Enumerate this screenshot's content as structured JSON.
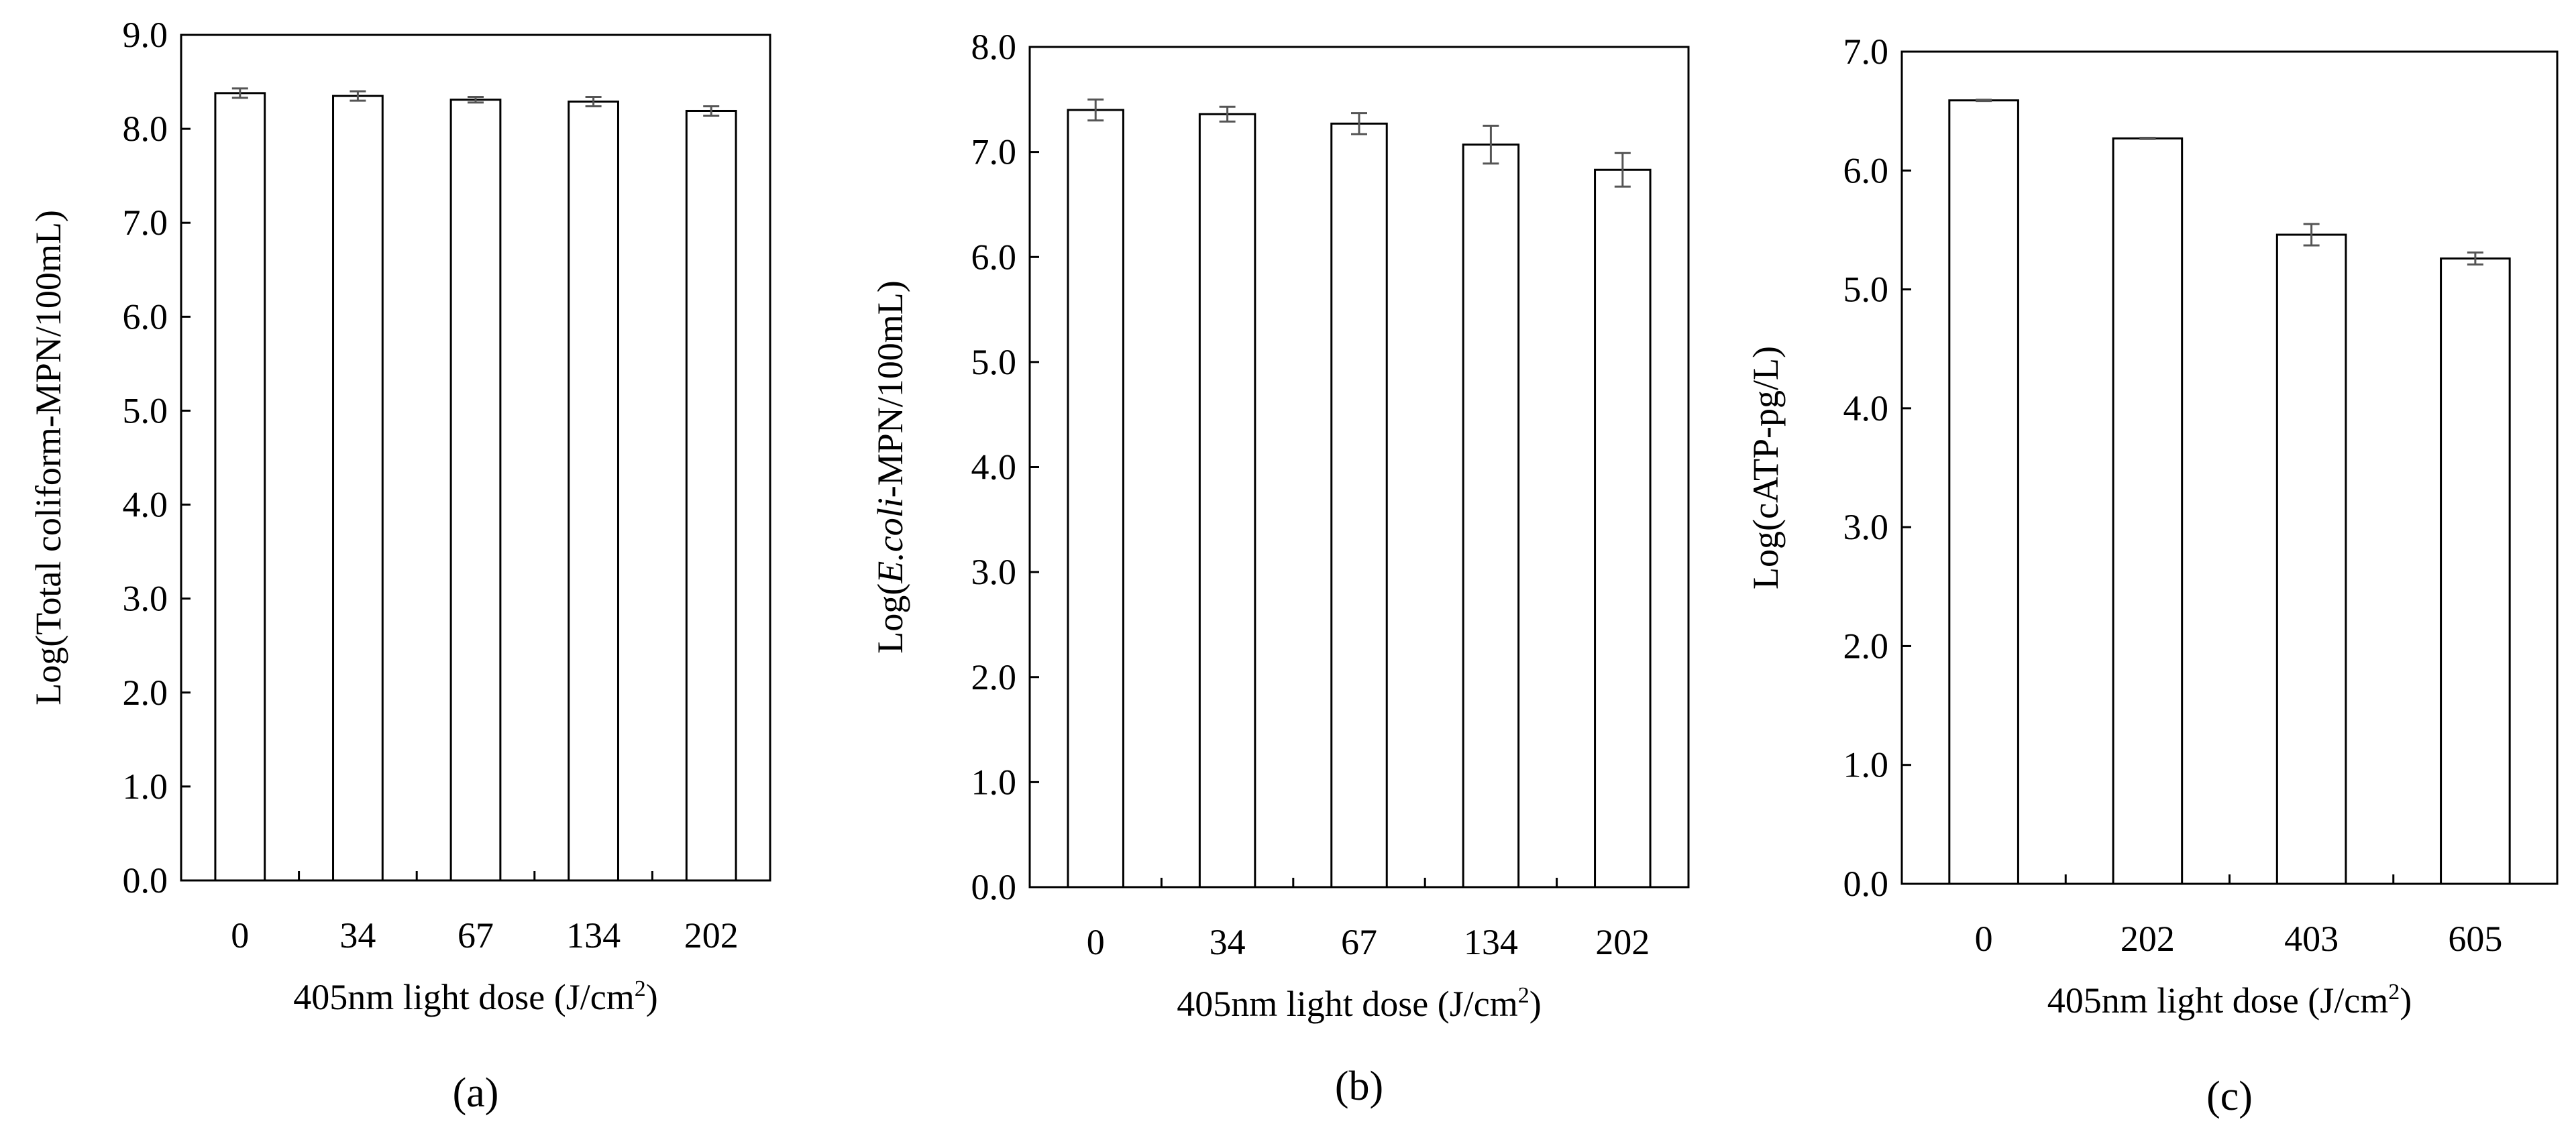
{
  "chart_data": [
    {
      "type": "bar",
      "panel_label": "(a)",
      "categories": [
        "0",
        "34",
        "67",
        "134",
        "202"
      ],
      "series": [
        {
          "values": [
            8.38,
            8.35,
            8.31,
            8.29,
            8.19
          ],
          "errors": [
            0.05,
            0.05,
            0.03,
            0.05,
            0.05
          ]
        }
      ],
      "xlabel": {
        "main": "405nm light dose (J/cm",
        "sup": "2",
        "tail": ")"
      },
      "ylabel": {
        "pre": "Log(Total coliform-MPN/100mL)",
        "ital": "",
        "post": ""
      },
      "ylim": [
        0,
        9
      ],
      "yticks": [
        "0.0",
        "1.0",
        "2.0",
        "3.0",
        "4.0",
        "5.0",
        "6.0",
        "7.0",
        "8.0",
        "9.0"
      ],
      "grid": false,
      "bar_fill": "#ffffff",
      "bar_stroke": "#000000",
      "error_color": "#555555"
    },
    {
      "type": "bar",
      "panel_label": "(b)",
      "categories": [
        "0",
        "34",
        "67",
        "134",
        "202"
      ],
      "series": [
        {
          "values": [
            7.4,
            7.36,
            7.27,
            7.07,
            6.83
          ],
          "errors": [
            0.1,
            0.07,
            0.1,
            0.18,
            0.16
          ]
        }
      ],
      "xlabel": {
        "main": "405nm light dose (J/cm",
        "sup": "2",
        "tail": ")"
      },
      "ylabel": {
        "pre": "Log(",
        "ital": "E.coli",
        "post": "-MPN/100mL)"
      },
      "ylim": [
        0,
        8
      ],
      "yticks": [
        "0.0",
        "1.0",
        "2.0",
        "3.0",
        "4.0",
        "5.0",
        "6.0",
        "7.0",
        "8.0"
      ],
      "grid": false,
      "bar_fill": "#ffffff",
      "bar_stroke": "#000000",
      "error_color": "#555555"
    },
    {
      "type": "bar",
      "panel_label": "(c)",
      "categories": [
        "0",
        "202",
        "403",
        "605"
      ],
      "series": [
        {
          "values": [
            6.59,
            6.27,
            5.46,
            5.26
          ],
          "errors": [
            0.005,
            0.005,
            0.09,
            0.05
          ]
        }
      ],
      "xlabel": {
        "main": "405nm light dose (J/cm",
        "sup": "2",
        "tail": ")"
      },
      "ylabel": {
        "pre": "Log(cATP-pg/L)",
        "ital": "",
        "post": ""
      },
      "ylim": [
        0,
        7
      ],
      "yticks": [
        "0.0",
        "1.0",
        "2.0",
        "3.0",
        "4.0",
        "5.0",
        "6.0",
        "7.0"
      ],
      "grid": false,
      "bar_fill": "#ffffff",
      "bar_stroke": "#000000",
      "error_color": "#555555"
    }
  ]
}
